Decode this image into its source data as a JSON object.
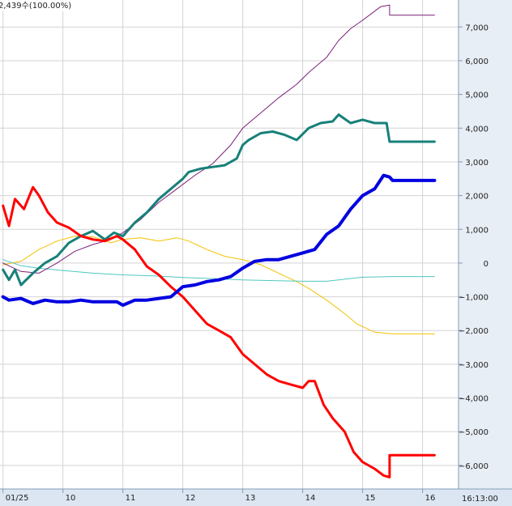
{
  "legend": {
    "text": "2,439수(100.00%)"
  },
  "time_readout": "16:13:00",
  "chart_data": {
    "type": "line",
    "title": "",
    "xlabel": "",
    "ylabel": "",
    "x_ticks": [
      {
        "x": 9.0,
        "label": "01/25"
      },
      {
        "x": 10.0,
        "label": "10"
      },
      {
        "x": 11.0,
        "label": "11"
      },
      {
        "x": 12.0,
        "label": "12"
      },
      {
        "x": 13.0,
        "label": "13"
      },
      {
        "x": 14.0,
        "label": "14"
      },
      {
        "x": 15.0,
        "label": "15"
      },
      {
        "x": 16.0,
        "label": "16"
      }
    ],
    "y_ticks": [
      {
        "y": 7000,
        "label": "7,000"
      },
      {
        "y": 6000,
        "label": "6,000"
      },
      {
        "y": 5000,
        "label": "5,000"
      },
      {
        "y": 4000,
        "label": "4,000"
      },
      {
        "y": 3000,
        "label": "3,000"
      },
      {
        "y": 2000,
        "label": "2,000"
      },
      {
        "y": 1000,
        "label": "1,000"
      },
      {
        "y": 0,
        "label": "0"
      },
      {
        "y": -1000,
        "label": "−1,000"
      },
      {
        "y": -2000,
        "label": "−2,000"
      },
      {
        "y": -3000,
        "label": "−3,000"
      },
      {
        "y": -4000,
        "label": "−4,000"
      },
      {
        "y": -5000,
        "label": "−5,000"
      },
      {
        "y": -6000,
        "label": "−6,000"
      }
    ],
    "xlim": [
      8.95,
      16.6
    ],
    "ylim": [
      -6700,
      7800
    ],
    "grid": true,
    "series": [
      {
        "color": "#f2c200",
        "width": 1,
        "points": [
          [
            9.0,
            -50
          ],
          [
            9.3,
            50
          ],
          [
            9.6,
            400
          ],
          [
            9.9,
            650
          ],
          [
            10.2,
            800
          ],
          [
            10.5,
            780
          ],
          [
            10.8,
            600
          ],
          [
            11.0,
            700
          ],
          [
            11.3,
            750
          ],
          [
            11.6,
            650
          ],
          [
            11.9,
            750
          ],
          [
            12.1,
            650
          ],
          [
            12.4,
            400
          ],
          [
            12.7,
            200
          ],
          [
            13.0,
            100
          ],
          [
            13.3,
            -50
          ],
          [
            13.6,
            -300
          ],
          [
            13.9,
            -550
          ],
          [
            14.1,
            -750
          ],
          [
            14.4,
            -1100
          ],
          [
            14.7,
            -1500
          ],
          [
            14.9,
            -1800
          ],
          [
            15.2,
            -2050
          ],
          [
            15.5,
            -2100
          ],
          [
            16.2,
            -2100
          ]
        ]
      },
      {
        "color": "#4fc7c0",
        "width": 1,
        "points": [
          [
            9.0,
            100
          ],
          [
            9.3,
            -80
          ],
          [
            9.6,
            -150
          ],
          [
            10.0,
            -220
          ],
          [
            10.5,
            -300
          ],
          [
            11.0,
            -350
          ],
          [
            11.5,
            -380
          ],
          [
            12.0,
            -430
          ],
          [
            12.5,
            -460
          ],
          [
            13.0,
            -500
          ],
          [
            13.5,
            -520
          ],
          [
            14.0,
            -540
          ],
          [
            14.4,
            -540
          ],
          [
            14.7,
            -480
          ],
          [
            15.0,
            -420
          ],
          [
            15.5,
            -400
          ],
          [
            16.2,
            -400
          ]
        ]
      },
      {
        "color": "#7a1f7a",
        "width": 1,
        "points": [
          [
            9.0,
            0
          ],
          [
            9.3,
            -250
          ],
          [
            9.6,
            -300
          ],
          [
            9.9,
            0
          ],
          [
            10.2,
            350
          ],
          [
            10.5,
            550
          ],
          [
            10.8,
            700
          ],
          [
            11.0,
            900
          ],
          [
            11.3,
            1300
          ],
          [
            11.6,
            1800
          ],
          [
            11.9,
            2200
          ],
          [
            12.2,
            2600
          ],
          [
            12.5,
            2950
          ],
          [
            12.8,
            3500
          ],
          [
            13.0,
            4000
          ],
          [
            13.3,
            4450
          ],
          [
            13.6,
            4900
          ],
          [
            13.9,
            5300
          ],
          [
            14.1,
            5650
          ],
          [
            14.4,
            6100
          ],
          [
            14.6,
            6600
          ],
          [
            14.8,
            6950
          ],
          [
            15.0,
            7200
          ],
          [
            15.3,
            7600
          ],
          [
            15.45,
            7650
          ],
          [
            15.45,
            7350
          ],
          [
            16.2,
            7350
          ]
        ]
      },
      {
        "color": "#17807a",
        "width": 3,
        "points": [
          [
            9.0,
            -200
          ],
          [
            9.1,
            -500
          ],
          [
            9.2,
            -200
          ],
          [
            9.3,
            -650
          ],
          [
            9.5,
            -300
          ],
          [
            9.7,
            0
          ],
          [
            9.9,
            200
          ],
          [
            10.1,
            600
          ],
          [
            10.3,
            800
          ],
          [
            10.5,
            950
          ],
          [
            10.7,
            700
          ],
          [
            10.85,
            900
          ],
          [
            11.0,
            800
          ],
          [
            11.2,
            1200
          ],
          [
            11.4,
            1500
          ],
          [
            11.6,
            1900
          ],
          [
            11.8,
            2200
          ],
          [
            12.0,
            2500
          ],
          [
            12.1,
            2700
          ],
          [
            12.3,
            2800
          ],
          [
            12.5,
            2850
          ],
          [
            12.7,
            2900
          ],
          [
            12.9,
            3100
          ],
          [
            13.0,
            3500
          ],
          [
            13.1,
            3650
          ],
          [
            13.3,
            3850
          ],
          [
            13.5,
            3900
          ],
          [
            13.7,
            3800
          ],
          [
            13.9,
            3650
          ],
          [
            14.1,
            4000
          ],
          [
            14.3,
            4150
          ],
          [
            14.5,
            4200
          ],
          [
            14.6,
            4400
          ],
          [
            14.8,
            4150
          ],
          [
            15.0,
            4250
          ],
          [
            15.2,
            4150
          ],
          [
            15.4,
            4150
          ],
          [
            15.45,
            3600
          ],
          [
            16.2,
            3600
          ]
        ]
      },
      {
        "color": "#ff0000",
        "width": 3,
        "points": [
          [
            9.0,
            1700
          ],
          [
            9.1,
            1100
          ],
          [
            9.2,
            1900
          ],
          [
            9.35,
            1600
          ],
          [
            9.5,
            2250
          ],
          [
            9.6,
            2000
          ],
          [
            9.75,
            1500
          ],
          [
            9.9,
            1200
          ],
          [
            10.1,
            1050
          ],
          [
            10.3,
            800
          ],
          [
            10.5,
            700
          ],
          [
            10.7,
            650
          ],
          [
            10.9,
            800
          ],
          [
            11.0,
            700
          ],
          [
            11.2,
            400
          ],
          [
            11.4,
            -100
          ],
          [
            11.6,
            -350
          ],
          [
            11.8,
            -700
          ],
          [
            12.0,
            -1000
          ],
          [
            12.2,
            -1400
          ],
          [
            12.4,
            -1800
          ],
          [
            12.6,
            -2000
          ],
          [
            12.8,
            -2200
          ],
          [
            13.0,
            -2700
          ],
          [
            13.2,
            -3000
          ],
          [
            13.4,
            -3300
          ],
          [
            13.6,
            -3500
          ],
          [
            13.8,
            -3600
          ],
          [
            14.0,
            -3700
          ],
          [
            14.1,
            -3500
          ],
          [
            14.2,
            -3500
          ],
          [
            14.35,
            -4200
          ],
          [
            14.5,
            -4600
          ],
          [
            14.7,
            -5000
          ],
          [
            14.85,
            -5600
          ],
          [
            15.0,
            -5900
          ],
          [
            15.2,
            -6100
          ],
          [
            15.35,
            -6300
          ],
          [
            15.45,
            -6350
          ],
          [
            15.45,
            -5700
          ],
          [
            16.2,
            -5700
          ]
        ]
      },
      {
        "color": "#0000e0",
        "width": 4,
        "points": [
          [
            9.0,
            -1000
          ],
          [
            9.1,
            -1100
          ],
          [
            9.3,
            -1050
          ],
          [
            9.5,
            -1200
          ],
          [
            9.7,
            -1100
          ],
          [
            9.9,
            -1150
          ],
          [
            10.1,
            -1150
          ],
          [
            10.3,
            -1100
          ],
          [
            10.5,
            -1150
          ],
          [
            10.7,
            -1150
          ],
          [
            10.9,
            -1150
          ],
          [
            11.0,
            -1250
          ],
          [
            11.2,
            -1100
          ],
          [
            11.4,
            -1100
          ],
          [
            11.6,
            -1050
          ],
          [
            11.8,
            -1000
          ],
          [
            12.0,
            -700
          ],
          [
            12.2,
            -650
          ],
          [
            12.4,
            -550
          ],
          [
            12.6,
            -500
          ],
          [
            12.8,
            -400
          ],
          [
            13.0,
            -150
          ],
          [
            13.2,
            50
          ],
          [
            13.4,
            100
          ],
          [
            13.6,
            100
          ],
          [
            13.8,
            200
          ],
          [
            14.0,
            300
          ],
          [
            14.2,
            400
          ],
          [
            14.4,
            850
          ],
          [
            14.6,
            1100
          ],
          [
            14.8,
            1600
          ],
          [
            15.0,
            2000
          ],
          [
            15.2,
            2200
          ],
          [
            15.35,
            2600
          ],
          [
            15.45,
            2550
          ],
          [
            15.5,
            2450
          ],
          [
            16.2,
            2450
          ]
        ]
      }
    ]
  }
}
